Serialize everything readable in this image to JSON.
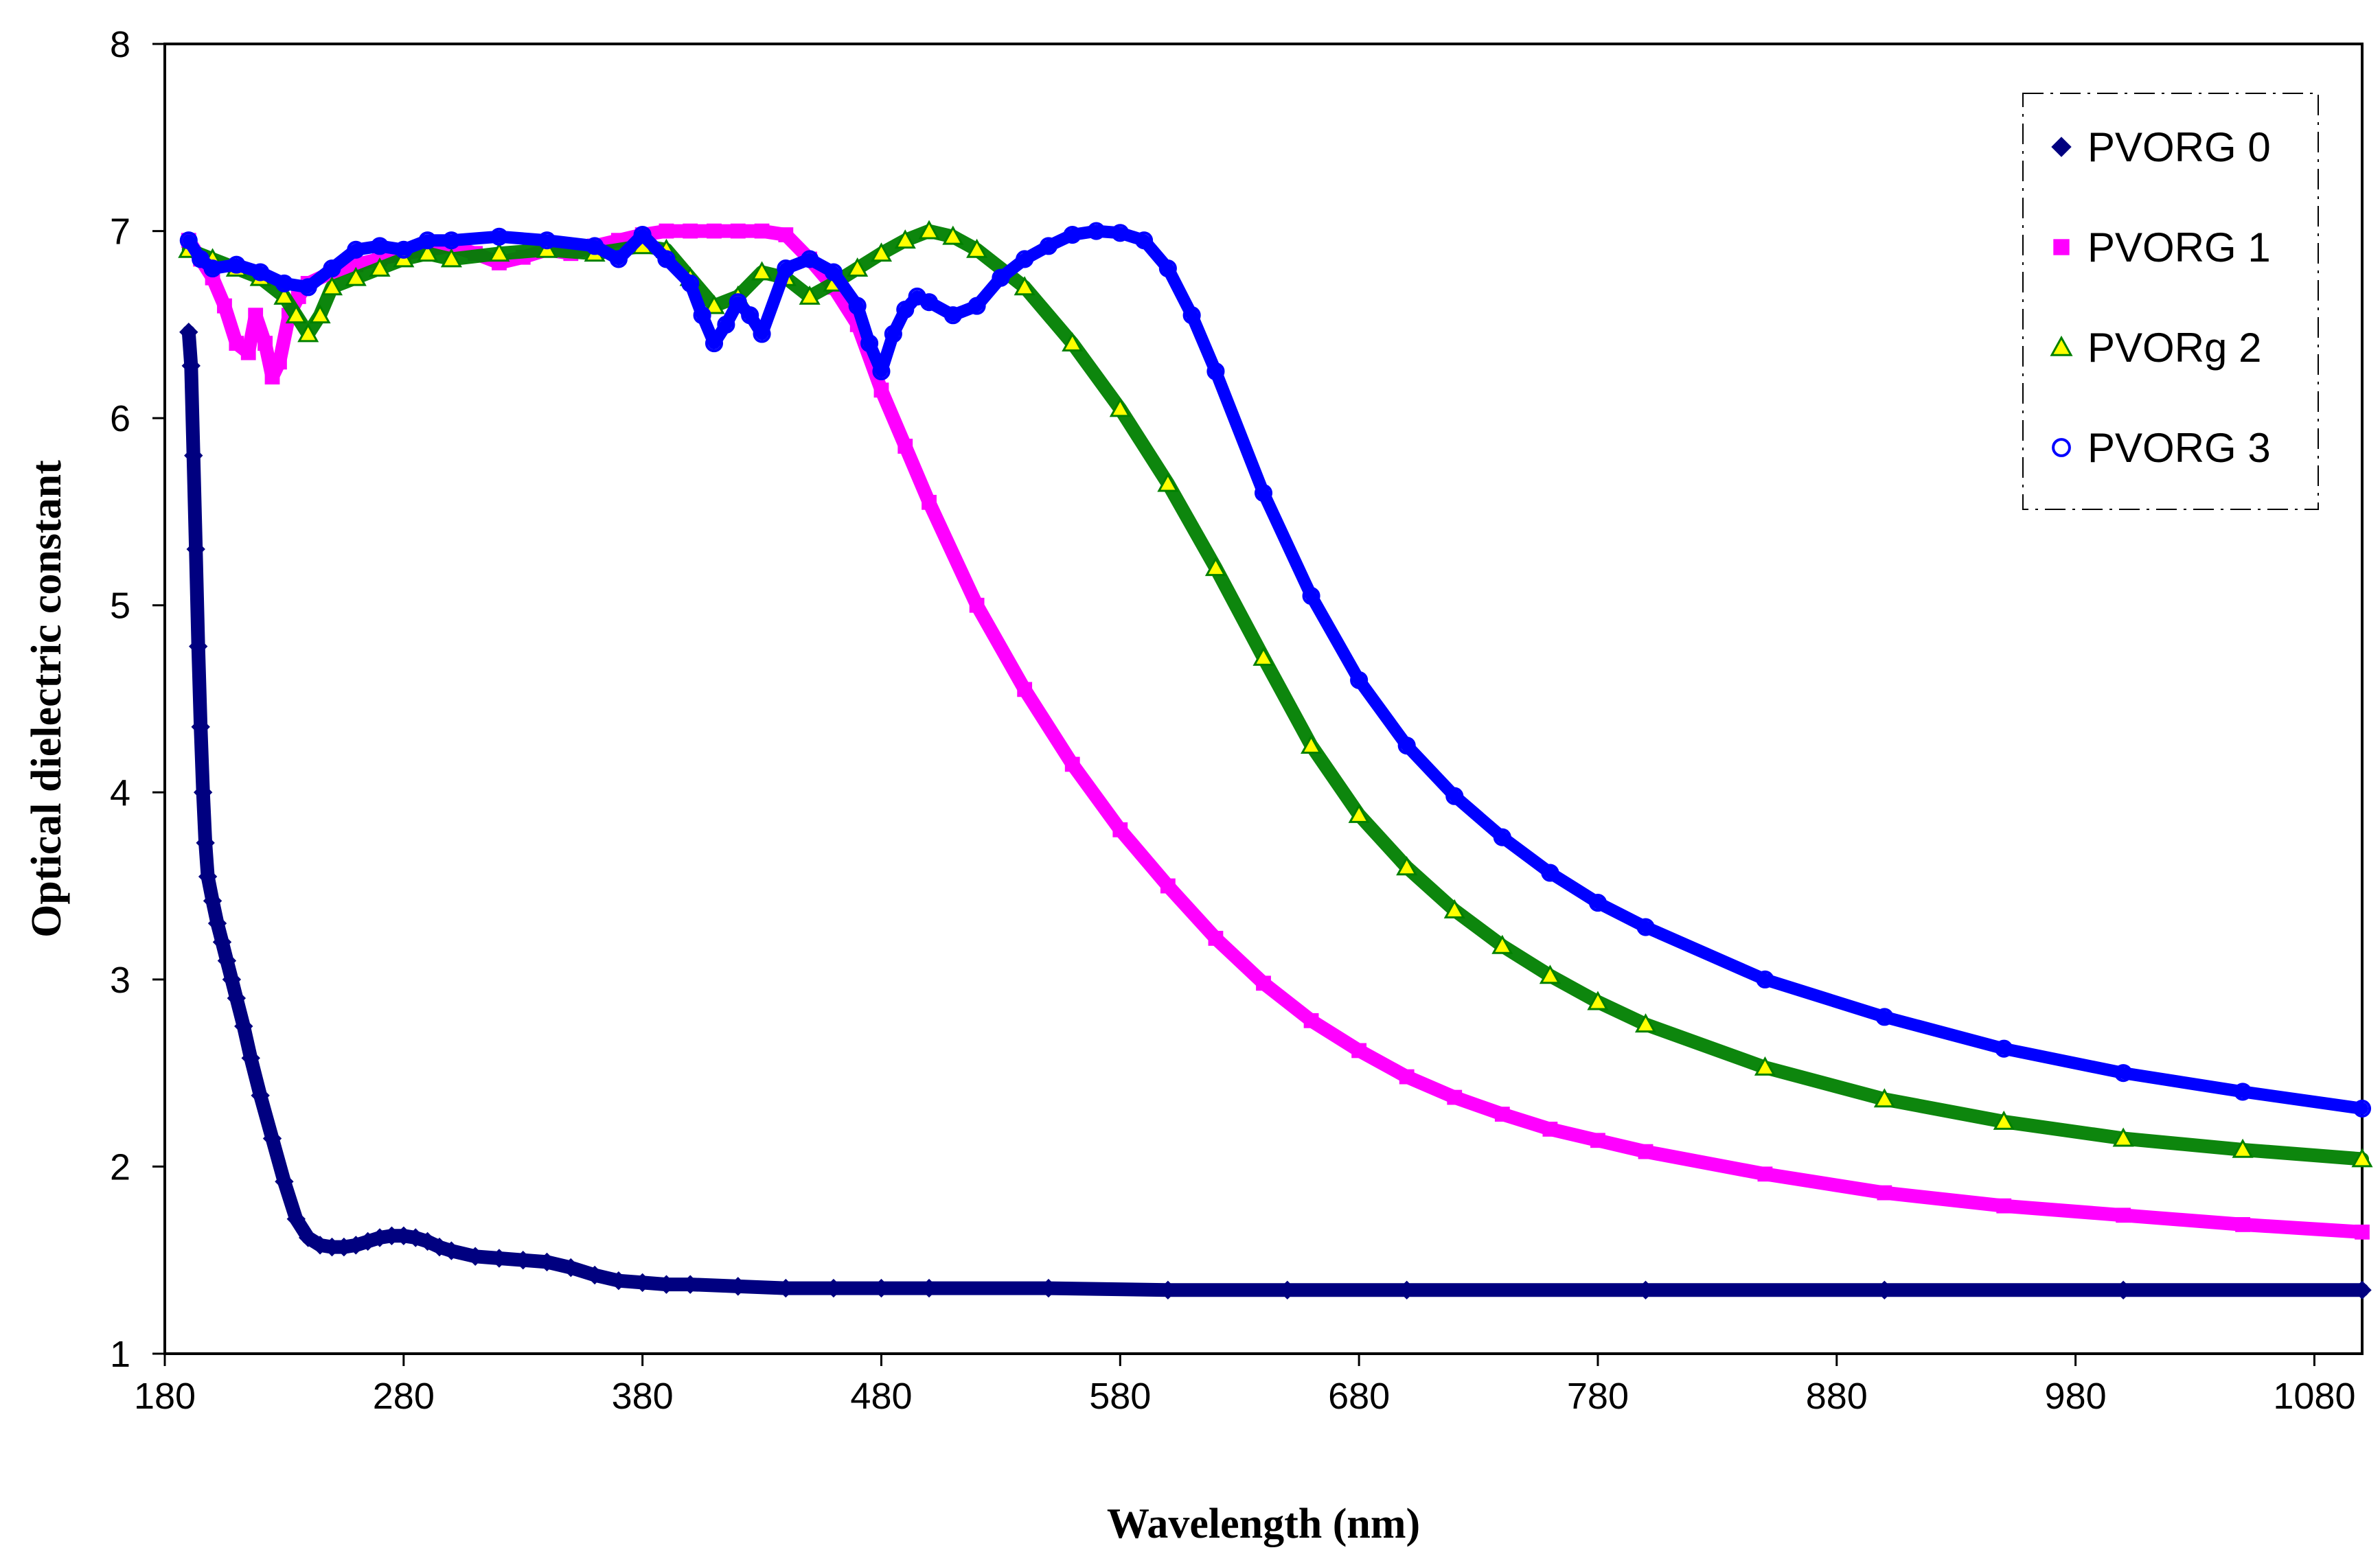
{
  "chart_data": {
    "type": "scatter",
    "title": "",
    "xlabel": "Wavelength (nm)",
    "ylabel": "Optical dielectric constant",
    "xlim": [
      180,
      1100
    ],
    "ylim": [
      1,
      8
    ],
    "xticks": [
      180,
      280,
      380,
      480,
      580,
      680,
      780,
      880,
      980,
      1080
    ],
    "yticks": [
      1,
      2,
      3,
      4,
      5,
      6,
      7,
      8
    ],
    "grid": false,
    "legend_position": "top-right",
    "series": [
      {
        "name": "PVORG 0",
        "marker": "diamond",
        "color": "#000080",
        "x": [
          190,
          191,
          192,
          193,
          194,
          195,
          196,
          197,
          198,
          200,
          202,
          204,
          206,
          208,
          210,
          213,
          216,
          220,
          225,
          230,
          235,
          240,
          245,
          250,
          255,
          260,
          265,
          270,
          275,
          280,
          285,
          290,
          295,
          300,
          310,
          320,
          330,
          340,
          350,
          360,
          370,
          380,
          390,
          400,
          420,
          440,
          460,
          480,
          500,
          550,
          600,
          650,
          700,
          800,
          900,
          1000,
          1100
        ],
        "y": [
          6.46,
          6.28,
          5.8,
          5.3,
          4.78,
          4.35,
          4.0,
          3.73,
          3.55,
          3.42,
          3.3,
          3.2,
          3.1,
          3.0,
          2.9,
          2.75,
          2.58,
          2.38,
          2.15,
          1.92,
          1.72,
          1.62,
          1.58,
          1.57,
          1.57,
          1.58,
          1.6,
          1.62,
          1.63,
          1.63,
          1.62,
          1.6,
          1.57,
          1.55,
          1.52,
          1.51,
          1.5,
          1.49,
          1.46,
          1.42,
          1.39,
          1.38,
          1.37,
          1.37,
          1.36,
          1.35,
          1.35,
          1.35,
          1.35,
          1.35,
          1.34,
          1.34,
          1.34,
          1.34,
          1.34,
          1.34,
          1.34
        ]
      },
      {
        "name": "PVORG 1",
        "marker": "square",
        "color": "#ff00ff",
        "x": [
          190,
          195,
          200,
          205,
          210,
          215,
          218,
          222,
          225,
          228,
          232,
          236,
          240,
          250,
          260,
          270,
          280,
          290,
          300,
          310,
          320,
          330,
          340,
          350,
          360,
          370,
          380,
          390,
          400,
          410,
          420,
          430,
          440,
          450,
          460,
          470,
          480,
          490,
          500,
          520,
          540,
          560,
          580,
          600,
          620,
          640,
          660,
          680,
          700,
          720,
          740,
          760,
          780,
          800,
          850,
          900,
          950,
          1000,
          1050,
          1100
        ],
        "y": [
          6.95,
          6.85,
          6.75,
          6.6,
          6.4,
          6.35,
          6.55,
          6.4,
          6.22,
          6.3,
          6.55,
          6.65,
          6.72,
          6.78,
          6.82,
          6.85,
          6.88,
          6.9,
          6.92,
          6.88,
          6.83,
          6.86,
          6.9,
          6.88,
          6.92,
          6.95,
          6.98,
          7.0,
          7.0,
          7.0,
          7.0,
          7.0,
          6.98,
          6.85,
          6.7,
          6.5,
          6.15,
          5.85,
          5.55,
          5.0,
          4.55,
          4.15,
          3.8,
          3.5,
          3.22,
          2.98,
          2.78,
          2.62,
          2.48,
          2.37,
          2.28,
          2.2,
          2.14,
          2.08,
          1.96,
          1.86,
          1.79,
          1.74,
          1.69,
          1.65
        ]
      },
      {
        "name": "PVORg 2",
        "marker": "triangle",
        "color": "#008000",
        "x": [
          190,
          200,
          210,
          220,
          230,
          235,
          240,
          245,
          250,
          260,
          270,
          280,
          290,
          300,
          320,
          340,
          360,
          380,
          390,
          400,
          410,
          420,
          430,
          440,
          450,
          460,
          470,
          480,
          490,
          500,
          510,
          520,
          540,
          560,
          580,
          600,
          620,
          640,
          660,
          680,
          700,
          720,
          740,
          760,
          780,
          800,
          850,
          900,
          950,
          1000,
          1050,
          1100
        ],
        "y": [
          6.9,
          6.85,
          6.8,
          6.75,
          6.65,
          6.55,
          6.45,
          6.55,
          6.7,
          6.75,
          6.8,
          6.85,
          6.88,
          6.85,
          6.88,
          6.9,
          6.88,
          6.92,
          6.9,
          6.75,
          6.6,
          6.65,
          6.78,
          6.75,
          6.65,
          6.72,
          6.8,
          6.88,
          6.95,
          7.0,
          6.97,
          6.9,
          6.7,
          6.4,
          6.05,
          5.65,
          5.2,
          4.72,
          4.25,
          3.88,
          3.6,
          3.37,
          3.18,
          3.02,
          2.88,
          2.76,
          2.53,
          2.36,
          2.24,
          2.15,
          2.09,
          2.04
        ]
      },
      {
        "name": "PVORG 3",
        "marker": "circle",
        "color": "#0000ff",
        "x": [
          190,
          195,
          200,
          210,
          220,
          230,
          240,
          250,
          260,
          270,
          280,
          290,
          300,
          320,
          340,
          360,
          370,
          380,
          390,
          400,
          405,
          410,
          415,
          420,
          425,
          430,
          440,
          450,
          460,
          470,
          475,
          480,
          485,
          490,
          495,
          500,
          510,
          520,
          530,
          540,
          550,
          560,
          570,
          580,
          590,
          600,
          610,
          620,
          640,
          660,
          680,
          700,
          720,
          740,
          760,
          780,
          800,
          850,
          900,
          950,
          1000,
          1050,
          1100
        ],
        "y": [
          6.95,
          6.85,
          6.8,
          6.82,
          6.78,
          6.72,
          6.7,
          6.8,
          6.9,
          6.92,
          6.9,
          6.95,
          6.95,
          6.97,
          6.95,
          6.92,
          6.85,
          6.98,
          6.85,
          6.72,
          6.55,
          6.4,
          6.5,
          6.62,
          6.55,
          6.45,
          6.8,
          6.85,
          6.78,
          6.6,
          6.4,
          6.25,
          6.45,
          6.58,
          6.65,
          6.62,
          6.55,
          6.6,
          6.75,
          6.85,
          6.92,
          6.98,
          7.0,
          6.99,
          6.95,
          6.8,
          6.55,
          6.25,
          5.6,
          5.05,
          4.6,
          4.25,
          3.98,
          3.76,
          3.57,
          3.41,
          3.28,
          3.0,
          2.8,
          2.63,
          2.5,
          2.4,
          2.31
        ]
      }
    ]
  }
}
